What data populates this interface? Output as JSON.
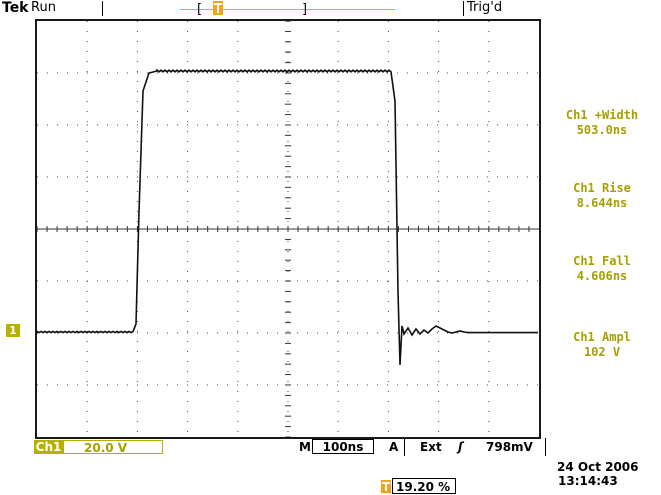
{
  "header": {
    "brand": "Tek",
    "acq_state": "Run",
    "trigger_status": "Trig'd"
  },
  "measurements": [
    {
      "label": "Ch1 +Width",
      "value": "503.0ns"
    },
    {
      "label": "Ch1 Rise",
      "value": "8.644ns"
    },
    {
      "label": "Ch1 Fall",
      "value": "4.606ns"
    },
    {
      "label": "Ch1 Ampl",
      "value": "102 V"
    }
  ],
  "channel": {
    "tag": "Ch1",
    "scale": "20.0 V",
    "marker": "1"
  },
  "timebase": {
    "mode": "M",
    "value": "100ns"
  },
  "trigger": {
    "type": "A",
    "source": "Ext",
    "slope_symbol": "ʃ",
    "level": "798mV",
    "position": "19.20 %"
  },
  "datetime": {
    "date": "24 Oct  2006",
    "time": "13:14:43"
  },
  "colors": {
    "channel": "#b8b000",
    "measurement_text": "#a6a000",
    "trigger_marker": "#f2a21c",
    "trace": "#111111"
  },
  "icons": {
    "trigger_position": "orange-T-marker-icon",
    "channel_ground": "channel-1-ground-marker-icon"
  }
}
